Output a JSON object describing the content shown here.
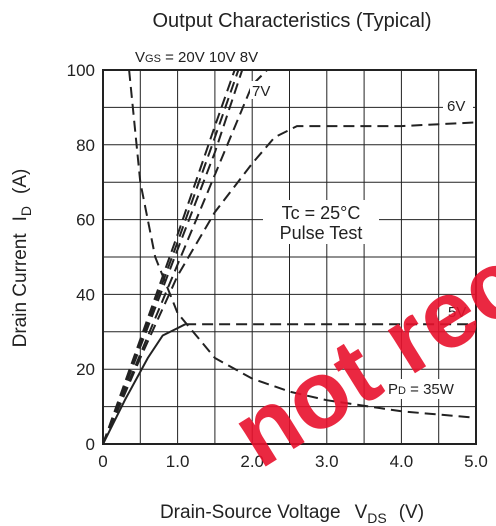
{
  "chart_data": {
    "type": "line",
    "title": "Output Characteristics (Typical)",
    "xlabel": "Drain-Source Voltage",
    "xlabel_symbol": "V",
    "xlabel_sub": "DS",
    "xlabel_unit": "(V)",
    "ylabel": "Drain Current",
    "ylabel_symbol": "I",
    "ylabel_sub": "D",
    "ylabel_unit": "(A)",
    "xlim": [
      0,
      5
    ],
    "ylim": [
      0,
      100
    ],
    "x_ticks": [
      "0",
      "1.0",
      "2.0",
      "3.0",
      "4.0",
      "5.0"
    ],
    "y_ticks": [
      "0",
      "20",
      "40",
      "60",
      "80",
      "100"
    ],
    "grid": true,
    "annotations": {
      "conditions_line1": "Tc = 25°C",
      "conditions_line2": "Pulse Test",
      "vgs_header": "VGS = 20V  10V  8V",
      "vgs_prefix": "V",
      "vgs_sub": "GS",
      "vgs_values": " = 20V  10V  8V",
      "power_prefix": "P",
      "power_sub": "D",
      "power_value": " = 35W"
    },
    "series": [
      {
        "name": "20V",
        "style": "dashed",
        "x": [
          0,
          0.5,
          1.0,
          1.5,
          1.8
        ],
        "y": [
          0,
          28,
          56,
          85,
          102
        ]
      },
      {
        "name": "10V",
        "style": "dashed",
        "x": [
          0,
          0.5,
          1.0,
          1.5,
          1.85
        ],
        "y": [
          0,
          27,
          54,
          82,
          102
        ]
      },
      {
        "name": "8V",
        "style": "dashed",
        "x": [
          0,
          0.5,
          1.0,
          1.5,
          1.9
        ],
        "y": [
          0,
          26,
          52,
          78,
          102
        ]
      },
      {
        "name": "7V",
        "style": "dashed",
        "x": [
          0,
          0.5,
          1.0,
          1.5,
          2.0,
          2.2
        ],
        "y": [
          0,
          24,
          48,
          72,
          96,
          100
        ]
      },
      {
        "name": "6V",
        "style": "dashed",
        "x": [
          0,
          0.5,
          1.0,
          1.5,
          2.0,
          2.3,
          2.6,
          3.0,
          4.0,
          5.0
        ],
        "y": [
          0,
          23,
          45,
          62,
          75,
          82,
          85,
          85,
          85,
          86
        ]
      },
      {
        "name": "5V",
        "style": "solid",
        "x": [
          0,
          0.3,
          0.6,
          0.8,
          1.0,
          1.1
        ],
        "y": [
          0,
          12,
          23,
          29,
          31,
          32
        ]
      },
      {
        "name": "5V",
        "style": "dashed",
        "x": [
          1.1,
          2.0,
          3.0,
          4.0,
          5.0
        ],
        "y": [
          32,
          32,
          32,
          32,
          32
        ]
      },
      {
        "name": "PD = 35W",
        "style": "dashed",
        "x": [
          0.35,
          0.5,
          0.7,
          1.0,
          1.5,
          2.0,
          2.5,
          3.0,
          4.0,
          5.0
        ],
        "y": [
          100,
          70,
          50,
          35,
          23,
          17.5,
          14,
          11.7,
          8.75,
          7
        ]
      }
    ]
  },
  "watermark": "not rec"
}
